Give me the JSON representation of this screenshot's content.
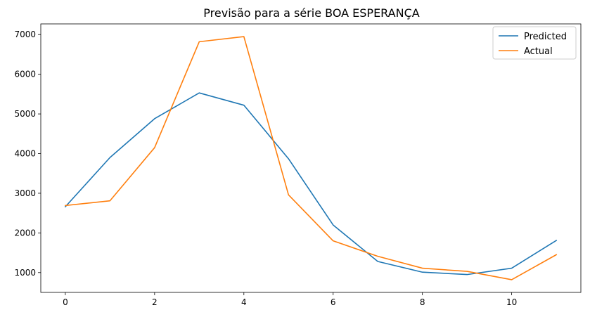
{
  "chart_data": {
    "type": "line",
    "title": "Previsão para a série BOA ESPERANÇA",
    "xlabel": "",
    "ylabel": "",
    "x": [
      0,
      1,
      2,
      3,
      4,
      5,
      6,
      7,
      8,
      9,
      10,
      11
    ],
    "series": [
      {
        "name": "Predicted",
        "color": "#1f77b4",
        "values": [
          2660,
          3900,
          4880,
          5530,
          5220,
          3870,
          2200,
          1280,
          1010,
          950,
          1110,
          1810
        ]
      },
      {
        "name": "Actual",
        "color": "#ff7f0e",
        "values": [
          2690,
          2810,
          4150,
          6820,
          6950,
          2960,
          1800,
          1410,
          1110,
          1030,
          820,
          1450
        ]
      }
    ],
    "xlim": [
      -0.55,
      11.55
    ],
    "ylim": [
      500,
      7270
    ],
    "xticks": [
      0,
      2,
      4,
      6,
      8,
      10
    ],
    "yticks": [
      1000,
      2000,
      3000,
      4000,
      5000,
      6000,
      7000
    ],
    "grid": false,
    "legend_position": "top-right"
  }
}
